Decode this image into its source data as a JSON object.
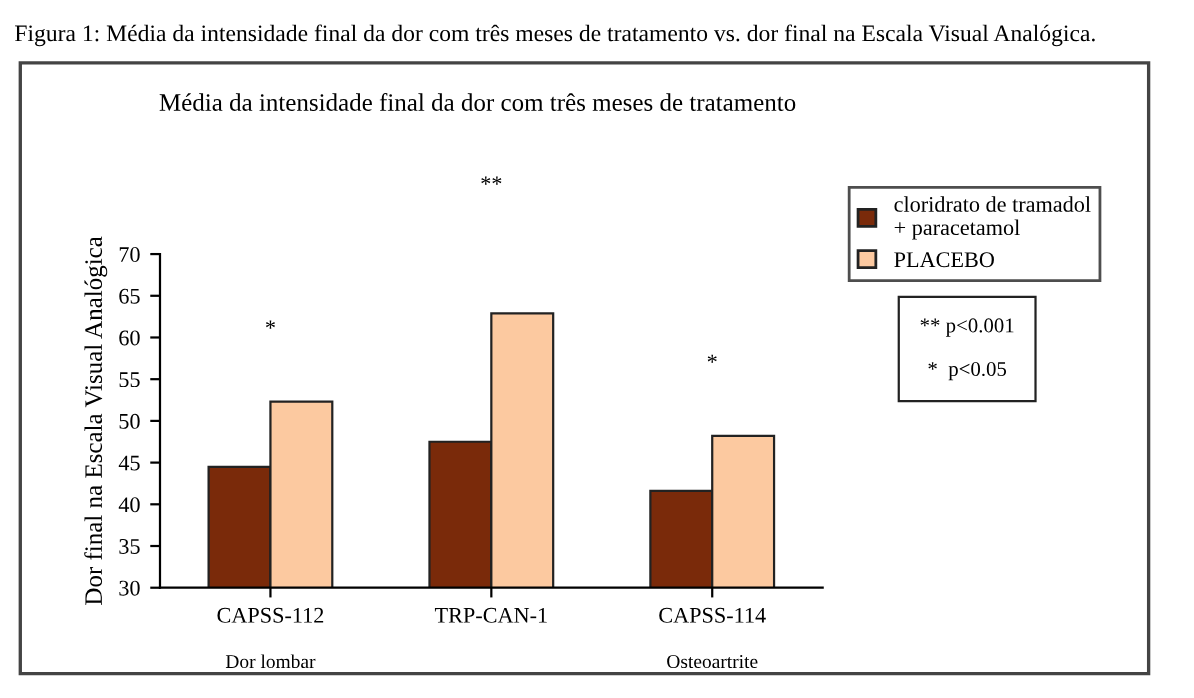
{
  "chart_data": {
    "type": "bar",
    "title": "Figura 1: Média da intensidade final da dor com três meses de tratamento vs. dor final na Escala Visual Analógica.",
    "subtitle": "Média da intensidade final da dor com três meses de tratamento",
    "ylabel": "Dor final na Escala Visual Analógica",
    "categories": [
      "CAPSS-112",
      "TRP-CAN-1",
      "CAPSS-114"
    ],
    "series": [
      {
        "name": "cloridrato de tramadol\n+ paracetamol",
        "color": "#7a2a0a",
        "values": [
          44.5,
          47.5,
          41.6
        ]
      },
      {
        "name": "PLACEBO",
        "color": "#fcc9a0",
        "values": [
          52.3,
          62.9,
          48.2
        ]
      }
    ],
    "ylim": [
      30,
      70
    ],
    "yticks": [
      30,
      35,
      40,
      45,
      50,
      55,
      60,
      65,
      70
    ],
    "legend": "top right",
    "grid": false,
    "annotations": [
      "*",
      "**",
      "*",
      "Dor lombar",
      "Osteoartrite",
      "** p<0.001\n\n*  p<0.05"
    ]
  }
}
